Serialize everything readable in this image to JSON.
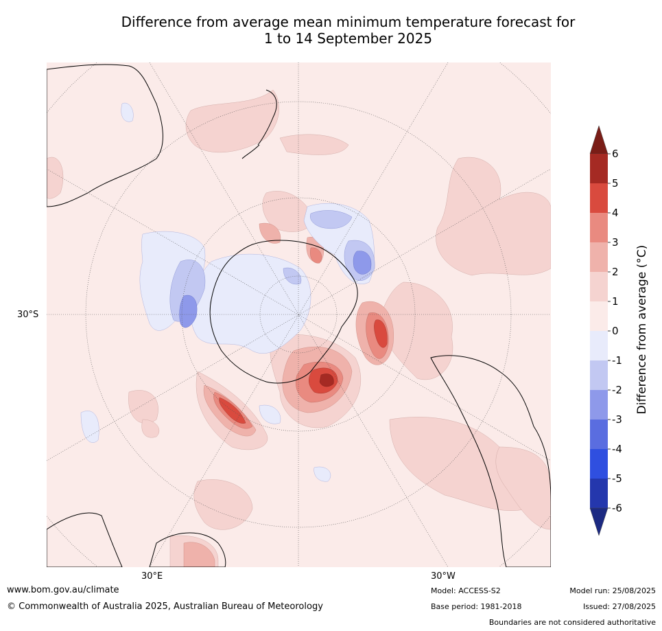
{
  "title": {
    "line1": "Difference from average mean minimum temperature forecast for",
    "line2": "1 to 14 September 2025"
  },
  "map": {
    "projection": "south-polar-stereographic",
    "lat_label": "30°S",
    "lon_labels": [
      "30°E",
      "30°W"
    ]
  },
  "colorbar": {
    "label": "Difference from average (°C)",
    "ticks": [
      "6",
      "5",
      "4",
      "3",
      "2",
      "1",
      "0",
      "-1",
      "-2",
      "-3",
      "-4",
      "-5",
      "-6"
    ],
    "colors": {
      "above6": "#7a1d17",
      "5to6": "#a52a23",
      "4to5": "#d94a3e",
      "3to4": "#e98a80",
      "2to3": "#efb2ab",
      "1to2": "#f5d3d0",
      "0to1": "#fbebe9",
      "m1to0": "#e8ebfb",
      "m2tom1": "#c2c8f2",
      "m3tom2": "#8e99ea",
      "m4tom3": "#5a6de0",
      "m5tom4": "#2f4fe0",
      "m6tom5": "#2437ad",
      "below_m6": "#1c2a82"
    }
  },
  "footer": {
    "url": "www.bom.gov.au/climate",
    "copyright": "© Commonwealth of Australia 2025, Australian Bureau of Meteorology",
    "model": "Model: ACCESS-S2",
    "base_period": "Base period: 1981-2018",
    "model_run": "Model run: 25/08/2025",
    "issued": "Issued: 27/08/2025",
    "disclaimer": "Boundaries are not considered authoritative"
  }
}
